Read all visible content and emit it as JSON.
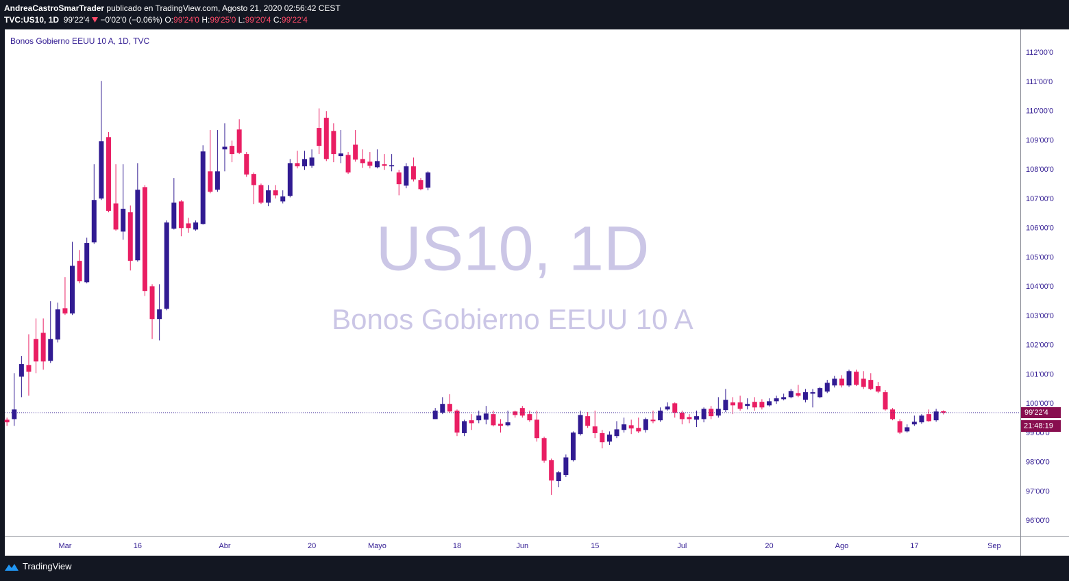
{
  "header": {
    "author": "AndreaCastroSmarTrader",
    "published": "publicado en TradingView.com, Agosto 21, 2020 02:56:42 CEST",
    "symbol": "TVC:US10, 1D",
    "price": "99'22'4",
    "change": "−0'02'0 (−0.06%)",
    "ohlc": [
      {
        "label": "O:",
        "value": "99'24'0"
      },
      {
        "label": "H:",
        "value": "99'25'0"
      },
      {
        "label": "L:",
        "value": "99'20'4"
      },
      {
        "label": "C:",
        "value": "99'22'4"
      }
    ]
  },
  "footer": {
    "brand": "TradingView"
  },
  "chart_data": {
    "type": "candlestick",
    "title": "Bonos Gobierno EEUU 10 A, 1D, TVC",
    "watermark": "US10, 1D",
    "watermark_subtitle": "Bonos Gobierno EEUU 10 A",
    "price_label": "99'22'4",
    "countdown": "21:48:19",
    "up_color": "#311b92",
    "down_color": "#e91e63",
    "grid": false,
    "x": [
      0,
      1,
      2,
      3,
      4,
      5,
      6,
      7,
      8,
      9,
      10,
      11,
      12,
      13,
      14,
      15,
      16,
      17,
      18,
      19,
      20,
      21,
      22,
      23,
      24,
      25,
      26,
      27,
      28,
      29,
      30,
      31,
      32,
      33,
      34,
      35,
      36,
      37,
      38,
      39,
      40,
      41,
      42,
      43,
      44,
      45,
      46,
      47,
      48,
      49,
      50,
      51,
      52,
      53,
      54,
      55,
      56,
      57,
      58,
      59,
      60,
      61,
      62,
      63,
      64,
      65,
      66,
      67,
      68,
      69,
      70,
      71,
      72,
      73,
      74,
      75,
      76,
      77,
      78,
      79,
      80,
      81,
      82,
      83,
      84,
      85,
      86,
      87,
      88,
      89,
      90,
      91,
      92,
      93,
      94,
      95,
      96,
      97,
      98,
      99,
      100,
      101,
      102,
      103,
      104,
      105,
      106,
      107,
      108,
      109,
      110,
      111,
      112,
      113,
      114,
      115,
      116,
      117,
      118,
      119,
      120,
      121,
      122,
      123,
      124,
      125,
      126,
      127,
      128,
      129
    ],
    "open": [
      99.46,
      99.48,
      100.93,
      101.33,
      102.22,
      102.43,
      101.47,
      102.2,
      103.27,
      103.09,
      104.89,
      104.16,
      105.52,
      107.02,
      109.12,
      106.85,
      105.89,
      106.55,
      104.91,
      107.41,
      104.02,
      102.9,
      103.25,
      105.99,
      106.92,
      106.17,
      105.96,
      106.15,
      107.95,
      107.32,
      108.7,
      108.82,
      109.38,
      108.54,
      107.86,
      107.48,
      106.88,
      107.3,
      106.92,
      107.11,
      108.23,
      108.12,
      108.14,
      109.43,
      109.78,
      109.33,
      108.47,
      108.51,
      108.86,
      108.37,
      108.28,
      108.09,
      108.19,
      108.12,
      107.91,
      107.46,
      108.12,
      107.65,
      107.39,
      99.48,
      99.7,
      100.0,
      99.77,
      99.0,
      99.44,
      99.44,
      99.46,
      99.65,
      99.32,
      99.27,
      99.74,
      99.86,
      99.65,
      99.46,
      98.83,
      98.08,
      97.36,
      97.57,
      98.08,
      98.97,
      99.58,
      99.23,
      99.0,
      98.71,
      98.9,
      99.11,
      99.27,
      99.18,
      99.11,
      99.46,
      99.44,
      99.81,
      100.02,
      99.7,
      99.55,
      99.46,
      99.48,
      99.83,
      99.6,
      99.79,
      100.05,
      100.05,
      99.93,
      100.07,
      100.07,
      99.95,
      100.09,
      100.16,
      100.23,
      100.37,
      100.14,
      100.35,
      100.23,
      100.42,
      100.63,
      100.86,
      100.63,
      101.1,
      100.86,
      100.82,
      100.61,
      100.4,
      99.81,
      99.41,
      99.06,
      99.3,
      99.37,
      99.65,
      99.44,
      99.75
    ],
    "high": [
      99.53,
      101.05,
      101.64,
      102.38,
      102.92,
      102.92,
      103.51,
      103.46,
      104.33,
      105.54,
      105.26,
      105.68,
      108.19,
      111.04,
      109.29,
      108.19,
      108.19,
      106.78,
      108.23,
      107.48,
      104.09,
      104.09,
      106.27,
      107.72,
      106.97,
      106.36,
      106.27,
      108.84,
      109.36,
      109.36,
      109.59,
      109.0,
      109.73,
      108.61,
      107.91,
      107.53,
      107.48,
      107.48,
      107.3,
      108.37,
      108.65,
      108.65,
      108.7,
      110.1,
      110.01,
      109.59,
      109.36,
      108.61,
      109.36,
      108.7,
      108.61,
      108.7,
      108.54,
      108.54,
      108.0,
      108.23,
      108.42,
      107.72,
      107.95,
      99.86,
      100.23,
      100.33,
      99.81,
      99.46,
      99.65,
      99.77,
      99.93,
      99.77,
      99.48,
      99.77,
      99.77,
      99.93,
      99.77,
      99.77,
      98.88,
      98.13,
      97.71,
      98.27,
      99.06,
      99.77,
      99.72,
      99.77,
      99.11,
      99.06,
      99.41,
      99.53,
      99.46,
      99.53,
      99.53,
      99.77,
      99.88,
      100.05,
      100.05,
      99.77,
      99.65,
      99.77,
      99.88,
      99.93,
      100.23,
      100.51,
      100.23,
      100.28,
      100.19,
      100.23,
      100.16,
      100.19,
      100.28,
      100.35,
      100.51,
      100.65,
      100.51,
      100.51,
      100.58,
      100.82,
      100.96,
      100.98,
      101.17,
      101.17,
      101.12,
      101.05,
      100.75,
      100.47,
      99.86,
      99.48,
      99.3,
      99.6,
      99.65,
      99.81,
      99.83,
      99.78
    ],
    "low": [
      99.25,
      99.25,
      100.23,
      100.28,
      101.05,
      101.17,
      101.4,
      102.1,
      103.04,
      103.04,
      104.12,
      104.12,
      105.47,
      106.97,
      106.55,
      105.92,
      105.61,
      104.56,
      104.86,
      103.69,
      102.22,
      102.17,
      103.2,
      105.96,
      105.73,
      105.85,
      105.92,
      106.13,
      107.2,
      107.25,
      107.95,
      108.26,
      108.54,
      107.76,
      106.83,
      106.83,
      106.76,
      107.02,
      106.85,
      107.06,
      108.05,
      108.0,
      108.07,
      108.54,
      108.3,
      108.26,
      108.23,
      107.86,
      108.28,
      108.07,
      108.05,
      108.05,
      108.0,
      107.95,
      107.13,
      107.37,
      107.6,
      107.3,
      107.3,
      99.48,
      99.65,
      99.7,
      98.9,
      98.9,
      99.11,
      99.34,
      99.3,
      99.23,
      99.02,
      99.23,
      99.53,
      99.53,
      99.39,
      98.71,
      97.99,
      96.89,
      97.15,
      97.5,
      98.03,
      98.92,
      99.18,
      98.83,
      98.48,
      98.6,
      98.83,
      99.02,
      98.97,
      99.0,
      99.02,
      99.34,
      99.39,
      99.77,
      99.53,
      99.3,
      99.34,
      99.21,
      99.37,
      99.48,
      99.53,
      99.72,
      99.65,
      99.77,
      99.81,
      99.77,
      99.81,
      99.91,
      100.0,
      100.12,
      100.19,
      100.23,
      100.05,
      99.88,
      100.19,
      100.37,
      100.56,
      100.56,
      100.58,
      100.61,
      100.51,
      100.47,
      100.37,
      99.77,
      99.44,
      98.97,
      99.02,
      99.25,
      99.32,
      99.39,
      99.39,
      99.64
    ],
    "close": [
      99.37,
      99.81,
      101.36,
      101.1,
      101.45,
      101.45,
      102.22,
      103.23,
      103.09,
      104.72,
      104.19,
      105.5,
      106.97,
      108.98,
      106.6,
      105.96,
      106.67,
      104.89,
      107.32,
      103.86,
      102.9,
      103.23,
      106.2,
      106.88,
      106.01,
      106.01,
      106.2,
      108.63,
      107.25,
      107.95,
      108.79,
      108.54,
      108.58,
      107.84,
      107.48,
      106.88,
      107.3,
      107.13,
      107.09,
      108.23,
      108.12,
      108.37,
      108.42,
      108.82,
      108.37,
      108.54,
      108.56,
      107.91,
      108.35,
      108.23,
      108.14,
      108.3,
      108.14,
      108.16,
      107.51,
      108.12,
      107.67,
      107.34,
      107.91,
      99.77,
      100.0,
      99.74,
      99.02,
      99.41,
      99.34,
      99.6,
      99.67,
      99.27,
      99.25,
      99.37,
      99.62,
      99.6,
      99.44,
      98.83,
      98.06,
      97.38,
      97.66,
      98.17,
      99.02,
      99.62,
      99.25,
      99.0,
      98.69,
      98.95,
      99.13,
      99.3,
      99.16,
      99.06,
      99.48,
      99.41,
      99.77,
      99.91,
      99.7,
      99.48,
      99.48,
      99.58,
      99.83,
      99.58,
      99.83,
      100.14,
      99.95,
      99.83,
      100.0,
      99.88,
      99.88,
      100.09,
      100.19,
      100.23,
      100.44,
      100.28,
      100.4,
      100.4,
      100.54,
      100.72,
      100.86,
      100.63,
      101.12,
      100.65,
      100.58,
      100.51,
      100.42,
      99.81,
      99.48,
      99.02,
      99.2,
      99.39,
      99.6,
      99.41,
      99.74,
      99.7
    ],
    "xlim": [
      -0.3,
      139.6
    ],
    "xticks": [
      {
        "value": 8,
        "label": "Mar"
      },
      {
        "value": 18,
        "label": "16"
      },
      {
        "value": 30,
        "label": "Abr"
      },
      {
        "value": 42,
        "label": "20"
      },
      {
        "value": 51,
        "label": "Mayo"
      },
      {
        "value": 62,
        "label": "18"
      },
      {
        "value": 71,
        "label": "Jun"
      },
      {
        "value": 81,
        "label": "15"
      },
      {
        "value": 93,
        "label": "Jul"
      },
      {
        "value": 105,
        "label": "20"
      },
      {
        "value": 115,
        "label": "Ago"
      },
      {
        "value": 125,
        "label": "17"
      },
      {
        "value": 136,
        "label": "Sep"
      }
    ],
    "ylim": [
      95.49,
      112.8
    ],
    "yticks": [
      {
        "value": 96,
        "label": "96'00'0"
      },
      {
        "value": 97,
        "label": "97'00'0"
      },
      {
        "value": 98,
        "label": "98'00'0"
      },
      {
        "value": 99,
        "label": "99'00'0"
      },
      {
        "value": 100,
        "label": "100'00'0"
      },
      {
        "value": 101,
        "label": "101'00'0"
      },
      {
        "value": 102,
        "label": "102'00'0"
      },
      {
        "value": 103,
        "label": "103'00'0"
      },
      {
        "value": 104,
        "label": "104'00'0"
      },
      {
        "value": 105,
        "label": "105'00'0"
      },
      {
        "value": 106,
        "label": "106'00'0"
      },
      {
        "value": 107,
        "label": "107'00'0"
      },
      {
        "value": 108,
        "label": "108'00'0"
      },
      {
        "value": 109,
        "label": "109'00'0"
      },
      {
        "value": 110,
        "label": "110'00'0"
      },
      {
        "value": 111,
        "label": "111'00'0"
      },
      {
        "value": 112,
        "label": "112'00'0"
      }
    ]
  }
}
